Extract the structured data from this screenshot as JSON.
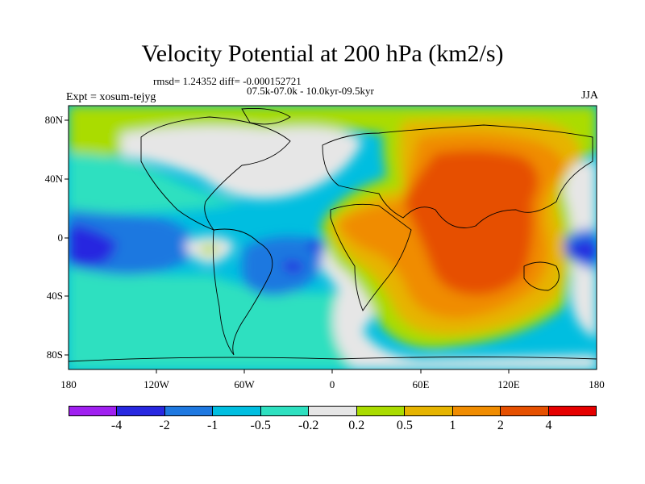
{
  "title": "Velocity Potential at 200 hPa (km2/s)",
  "stats": "rmsd= 1.24352 diff= -0.000152721",
  "period": "07.5k-07.0k - 10.0kyr-09.5kyr",
  "expt": "Expt = xosum-tejyg",
  "season": "JJA",
  "lat_ticks": [
    "80N",
    "40N",
    "0",
    "40S",
    "80S"
  ],
  "lon_ticks": [
    "180",
    "120W",
    "60W",
    "0",
    "60E",
    "120E",
    "180"
  ],
  "colorbar": {
    "colors": [
      "#a020f0",
      "#2828e0",
      "#1e78e0",
      "#00bee0",
      "#2ee0c0",
      "#e6e6e6",
      "#aadc00",
      "#e6b400",
      "#f08c00",
      "#e65000",
      "#e60000"
    ],
    "labels": [
      "-4",
      "-2",
      "-1",
      "-0.5",
      "-0.2",
      "0.2",
      "0.5",
      "1",
      "2",
      "4"
    ]
  }
}
